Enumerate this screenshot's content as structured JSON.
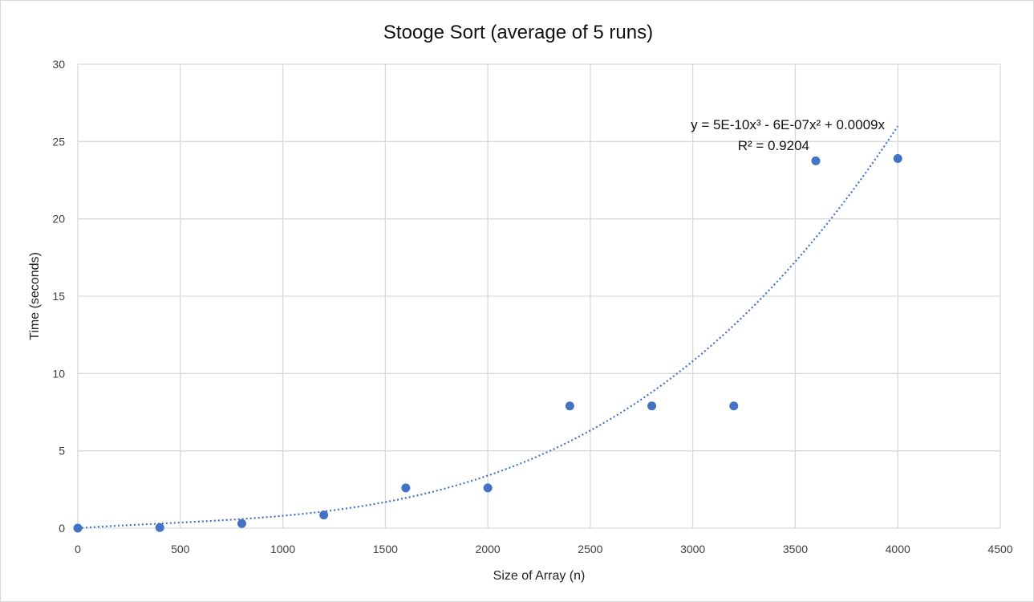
{
  "chart_data": {
    "type": "scatter",
    "title": "Stooge Sort (average of 5 runs)",
    "xlabel": "Size of Array (n)",
    "ylabel": "Time (seconds)",
    "xlim": [
      0,
      4500
    ],
    "ylim": [
      0,
      30
    ],
    "x_ticks": [
      "0",
      "500",
      "1000",
      "1500",
      "2000",
      "2500",
      "3000",
      "3500",
      "4000",
      "4500"
    ],
    "y_ticks": [
      "0",
      "5",
      "10",
      "15",
      "20",
      "25",
      "30"
    ],
    "grid": true,
    "legend": "none",
    "series": [
      {
        "x": [
          0,
          400,
          800,
          1200,
          1600,
          2000,
          2400,
          2800,
          3200,
          3600,
          4000
        ],
        "y": [
          0.0,
          0.04,
          0.3,
          0.85,
          2.6,
          2.6,
          7.9,
          7.9,
          7.9,
          23.75,
          23.9
        ],
        "color": "#4472C4"
      }
    ],
    "trendline": {
      "type": "polynomial",
      "order": 3,
      "coefficients": {
        "a3": 5e-10,
        "a2": -6e-07,
        "a1": 0.0009,
        "a0": 0
      },
      "x_range": [
        0,
        4000
      ],
      "style": "dotted",
      "color": "#4472C4",
      "equation_line": "y = 5E-10x³ - 6E-07x² + 0.0009x",
      "r_squared_line": "R² = 0.9204"
    },
    "colors": {
      "marker": "#4472C4",
      "grid": "#d9d9d9"
    }
  }
}
